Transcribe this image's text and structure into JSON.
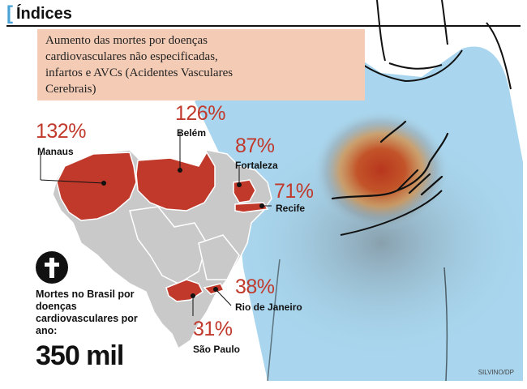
{
  "header": {
    "title": "Índices"
  },
  "subtitle": "Aumento das mortes por doenças cardiovasculares não especificadas, infartos e AVCs (Acidentes Vasculares Cerebrais)",
  "cities": {
    "manaus": {
      "pct": "132%",
      "name": "Manaus"
    },
    "belem": {
      "pct": "126%",
      "name": "Belém"
    },
    "fortaleza": {
      "pct": "87%",
      "name": "Fortaleza"
    },
    "recife": {
      "pct": "71%",
      "name": "Recife"
    },
    "rio": {
      "pct": "38%",
      "name": "Rio de Janeiro"
    },
    "saopaulo": {
      "pct": "31%",
      "name": "São Paulo"
    }
  },
  "footer": {
    "caption": "Mortes no Brasil por doenças cardiovasculares por ano:",
    "total": "350 mil"
  },
  "credit": "SILVINO/DP",
  "colors": {
    "accent_red": "#c0392b",
    "shirt_blue": "#a9d6ee",
    "map_gray": "#c9c9c9",
    "box_peach": "#f4ccb6"
  }
}
